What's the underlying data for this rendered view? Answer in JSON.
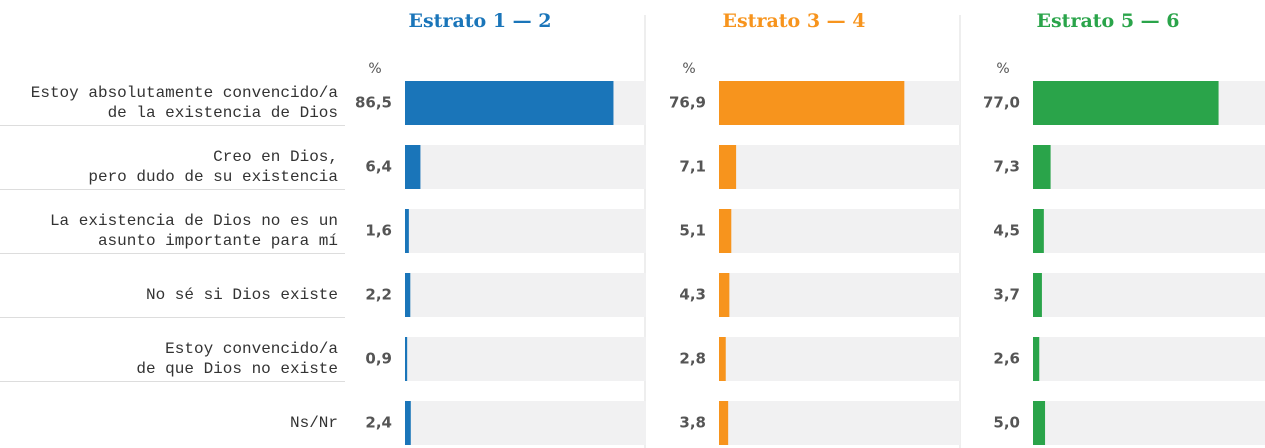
{
  "chart_data": {
    "type": "bar",
    "unit_label": "%",
    "categories": [
      [
        "Estoy absolutamente convencido/a",
        "de la existencia de Dios"
      ],
      [
        "Creo en Dios,",
        "pero dudo de su existencia"
      ],
      [
        "La existencia de Dios no es un",
        "asunto importante para mí"
      ],
      [
        "No sé si Dios existe"
      ],
      [
        "Estoy convencido/a",
        "de que Dios no existe"
      ],
      [
        "Ns/Nr"
      ]
    ],
    "xlim": [
      0,
      100
    ],
    "series": [
      {
        "name": "Estrato 1 — 2",
        "color": "#1a75b9",
        "values": [
          86.5,
          6.4,
          1.6,
          2.2,
          0.9,
          2.4
        ],
        "value_labels": [
          "86,5",
          "6,4",
          "1,6",
          "2,2",
          "0,9",
          "2,4"
        ]
      },
      {
        "name": "Estrato 3 — 4",
        "color": "#f7941d",
        "values": [
          76.9,
          7.1,
          5.1,
          4.3,
          2.8,
          3.8
        ],
        "value_labels": [
          "76,9",
          "7,1",
          "5,1",
          "4,3",
          "2,8",
          "3,8"
        ]
      },
      {
        "name": "Estrato 5 — 6",
        "color": "#2aa44a",
        "values": [
          77.0,
          7.3,
          4.5,
          3.7,
          2.6,
          5.0
        ],
        "value_labels": [
          "77,0",
          "7,3",
          "4,5",
          "3,7",
          "2,6",
          "5,0"
        ]
      }
    ]
  }
}
